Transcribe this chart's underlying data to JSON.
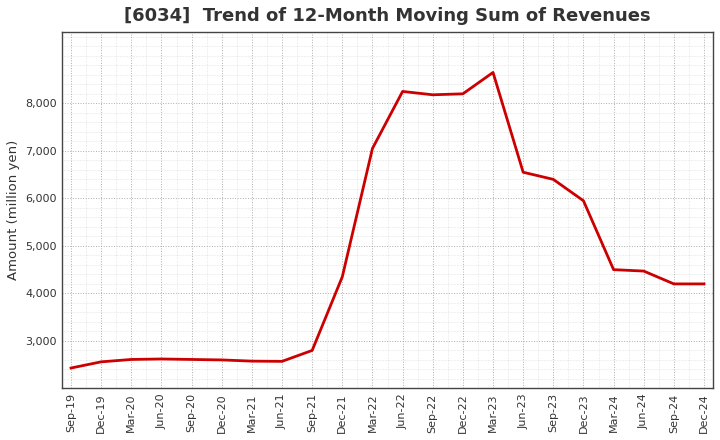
{
  "title": "[6034]  Trend of 12-Month Moving Sum of Revenues",
  "ylabel": "Amount (million yen)",
  "line_color": "#cc0000",
  "background_color": "#ffffff",
  "plot_bg_color": "#ffffff",
  "grid_color": "#999999",
  "xlabels": [
    "Sep-19",
    "Dec-19",
    "Mar-20",
    "Jun-20",
    "Sep-20",
    "Dec-20",
    "Mar-21",
    "Jun-21",
    "Sep-21",
    "Dec-21",
    "Mar-22",
    "Jun-22",
    "Sep-22",
    "Dec-22",
    "Mar-23",
    "Jun-23",
    "Sep-23",
    "Dec-23",
    "Mar-24",
    "Jun-24",
    "Sep-24",
    "Dec-24"
  ],
  "values": [
    2430,
    2560,
    2610,
    2620,
    2610,
    2600,
    2575,
    2570,
    2800,
    4350,
    7050,
    8250,
    8180,
    8200,
    8650,
    6550,
    6400,
    5950,
    4500,
    4470,
    4200,
    4200
  ],
  "ylim": [
    2000,
    9500
  ],
  "yticks": [
    3000,
    4000,
    5000,
    6000,
    7000,
    8000
  ],
  "title_fontsize": 13,
  "title_color": "#333333",
  "tick_fontsize": 8,
  "ylabel_fontsize": 9.5,
  "line_width": 2.0
}
